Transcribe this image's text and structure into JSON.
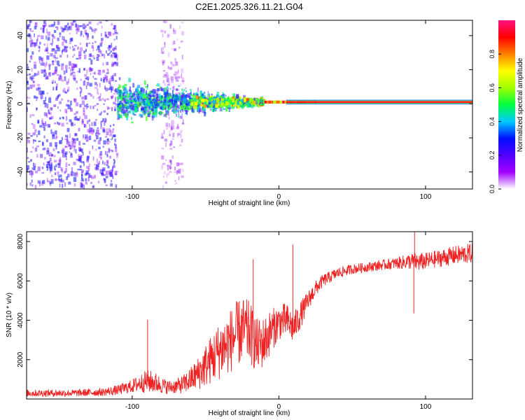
{
  "title": "C2E1.2025.326.11.21.G04",
  "chart_data": [
    {
      "type": "heatmap",
      "title": "C2E1.2025.326.11.21.G04",
      "xlabel": "Height of straight line (km)",
      "ylabel": "Frequency (Hz)",
      "xlim": [
        -172,
        132
      ],
      "ylim": [
        -50,
        49
      ],
      "xticks": [
        -100,
        0,
        100
      ],
      "yticks": [
        -40,
        -20,
        0,
        20,
        40
      ],
      "tone_frequency_hz": 1,
      "colorbar": {
        "label": "Normalized spectral amplitude",
        "range": [
          0,
          1
        ],
        "ticks": [
          "0.0",
          "0.2",
          "0.4",
          "0.6",
          "0.8"
        ],
        "colors": [
          "#ffffff",
          "#a000ff",
          "#5000ff",
          "#0010ff",
          "#00ccff",
          "#00ff40",
          "#a0ff00",
          "#ffff00",
          "#ff8000",
          "#ff0000",
          "#ff1080"
        ]
      },
      "regions": [
        {
          "x": [
            -172,
            -110
          ],
          "f_spread": 49,
          "intensity": 0.25,
          "note": "broadband scatter"
        },
        {
          "x": [
            -110,
            -10
          ],
          "f_spread": 8,
          "intensity": 0.45,
          "note": "central band"
        },
        {
          "x": [
            -80,
            -65
          ],
          "f_spread": 49,
          "intensity": 0.12,
          "note": "faint vertical streak"
        },
        {
          "x": [
            -10,
            132
          ],
          "f_spread": 1,
          "intensity": 1.0,
          "note": "narrow carrier line"
        }
      ]
    },
    {
      "type": "line",
      "xlabel": "Height of straight line (km)",
      "ylabel": "SNR (10 * v/v)",
      "xlim": [
        -172,
        132
      ],
      "ylim": [
        0,
        8500
      ],
      "xticks": [
        -100,
        0,
        100
      ],
      "yticks": [
        2000,
        4000,
        6000,
        8000
      ],
      "color": "#ee2222",
      "series": [
        {
          "name": "SNR",
          "x": [
            -172,
            -160,
            -150,
            -140,
            -130,
            -120,
            -110,
            -100,
            -95,
            -90,
            -85,
            -80,
            -75,
            -70,
            -65,
            -60,
            -55,
            -50,
            -45,
            -40,
            -35,
            -30,
            -25,
            -20,
            -15,
            -10,
            -5,
            0,
            5,
            10,
            15,
            20,
            25,
            30,
            35,
            40,
            50,
            60,
            70,
            80,
            90,
            95,
            100,
            110,
            120,
            132
          ],
          "values": [
            300,
            300,
            300,
            300,
            330,
            350,
            450,
            650,
            800,
            900,
            850,
            700,
            600,
            650,
            750,
            1000,
            1300,
            1700,
            2100,
            2500,
            2800,
            3200,
            3500,
            3400,
            2700,
            2900,
            3500,
            3900,
            4000,
            3600,
            4300,
            5000,
            5600,
            6000,
            6200,
            6400,
            6600,
            6700,
            6800,
            6900,
            7000,
            6950,
            7000,
            7150,
            7300,
            7400
          ],
          "noise": [
            180,
            180,
            180,
            180,
            190,
            200,
            250,
            350,
            450,
            600,
            550,
            420,
            350,
            380,
            480,
            650,
            850,
            1100,
            1300,
            1500,
            1600,
            1700,
            1700,
            1600,
            1400,
            1300,
            1100,
            900,
            900,
            800,
            700,
            500,
            400,
            330,
            300,
            280,
            250,
            250,
            260,
            300,
            420,
            480,
            430,
            450,
            480,
            520
          ]
        }
      ],
      "spikes": [
        {
          "x": -89.5,
          "value": 4030
        },
        {
          "x": -17.5,
          "value": 7100
        },
        {
          "x": 9.5,
          "value": 7850
        },
        {
          "x": 92.5,
          "value": 8600
        },
        {
          "x": 92.0,
          "value": 4350
        }
      ]
    }
  ]
}
